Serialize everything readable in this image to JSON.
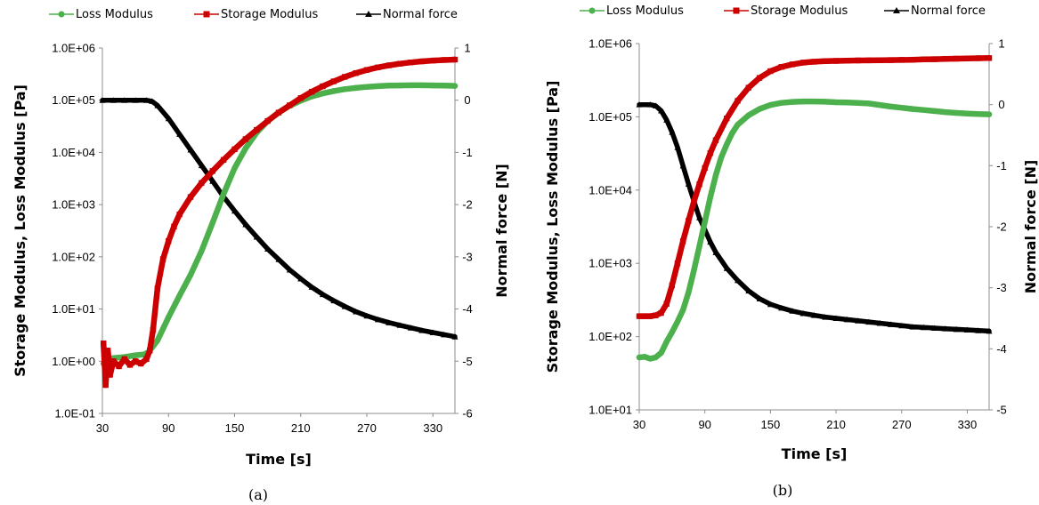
{
  "chart_data": [
    {
      "type": "line",
      "panel_label": "(a)",
      "xlabel": "Time [s]",
      "ylabel": "Storage Modulus, Loss Modulus [Pa]",
      "y2label": "Normal force [N]",
      "xlim": [
        30,
        350
      ],
      "x_ticks": [
        "30",
        "90",
        "150",
        "210",
        "270",
        "330"
      ],
      "x_tick_values": [
        30,
        90,
        150,
        210,
        270,
        330
      ],
      "ylim": [
        0.1,
        1000000
      ],
      "y_scale": "log",
      "y_ticks": [
        "1.0E-01",
        "1.0E+00",
        "1.0E+01",
        "1.0E+02",
        "1.0E+03",
        "1.0E+04",
        "1.0E+05",
        "1.0E+06"
      ],
      "y2lim": [
        -6,
        1
      ],
      "y2_ticks": [
        "-6",
        "-5",
        "-4",
        "-3",
        "-2",
        "-1",
        "0",
        "1"
      ],
      "legend_position": "top",
      "series": [
        {
          "name": "Loss Modulus",
          "color": "#4cb04c",
          "marker": "circle",
          "axis": "left",
          "x": [
            31,
            35,
            40,
            50,
            60,
            68,
            72,
            80,
            90,
            100,
            110,
            120,
            130,
            140,
            150,
            160,
            170,
            180,
            190,
            200,
            210,
            220,
            230,
            240,
            250,
            260,
            270,
            280,
            290,
            300,
            310,
            320,
            330,
            340,
            350
          ],
          "y": [
            0.9,
            1.05,
            1.15,
            1.2,
            1.3,
            1.35,
            1.5,
            2.5,
            7,
            18,
            45,
            130,
            450,
            1600,
            5000,
            12000,
            24000,
            40000,
            58000,
            78000,
            98000,
            118000,
            135000,
            150000,
            163000,
            172000,
            180000,
            186000,
            190000,
            192000,
            193000,
            193000,
            192000,
            190000,
            188000
          ]
        },
        {
          "name": "Storage Modulus",
          "color": "#cc0000",
          "marker": "square",
          "axis": "left",
          "x": [
            31,
            33,
            35,
            37,
            40,
            45,
            50,
            55,
            60,
            65,
            70,
            73,
            76,
            80,
            85,
            90,
            95,
            100,
            110,
            120,
            130,
            140,
            150,
            160,
            170,
            180,
            190,
            200,
            210,
            220,
            230,
            240,
            250,
            260,
            270,
            280,
            290,
            300,
            310,
            320,
            330,
            340,
            350
          ],
          "y": [
            2.2,
            0.35,
            1.6,
            0.55,
            1.0,
            0.8,
            1.1,
            0.85,
            1.0,
            0.9,
            1.1,
            1.6,
            4,
            25,
            90,
            200,
            380,
            650,
            1400,
            2600,
            4400,
            7200,
            11500,
            18000,
            27000,
            40000,
            58000,
            80000,
            110000,
            145000,
            185000,
            230000,
            280000,
            330000,
            380000,
            425000,
            465000,
            500000,
            530000,
            555000,
            575000,
            590000,
            600000
          ]
        },
        {
          "name": "Normal force",
          "color": "#000000",
          "marker": "triangle",
          "axis": "right",
          "x": [
            30,
            40,
            50,
            60,
            70,
            75,
            80,
            90,
            100,
            110,
            120,
            130,
            140,
            150,
            160,
            170,
            180,
            190,
            200,
            210,
            220,
            230,
            240,
            250,
            260,
            270,
            280,
            290,
            300,
            310,
            320,
            330,
            340,
            350
          ],
          "y": [
            0,
            0,
            0,
            0,
            0,
            -0.02,
            -0.1,
            -0.35,
            -0.65,
            -0.95,
            -1.25,
            -1.55,
            -1.85,
            -2.12,
            -2.38,
            -2.62,
            -2.85,
            -3.05,
            -3.25,
            -3.42,
            -3.58,
            -3.72,
            -3.84,
            -3.95,
            -4.05,
            -4.13,
            -4.2,
            -4.26,
            -4.31,
            -4.36,
            -4.41,
            -4.45,
            -4.49,
            -4.53
          ]
        }
      ]
    },
    {
      "type": "line",
      "panel_label": "(b)",
      "xlabel": "Time [s]",
      "ylabel": "Storage Modulus, Loss Modulus [Pa]",
      "y2label": "Normal force [N]",
      "xlim": [
        30,
        350
      ],
      "x_ticks": [
        "30",
        "90",
        "150",
        "210",
        "270",
        "330"
      ],
      "x_tick_values": [
        30,
        90,
        150,
        210,
        270,
        330
      ],
      "ylim": [
        10,
        1000000
      ],
      "y_scale": "log",
      "y_ticks": [
        "1.0E+01",
        "1.0E+02",
        "1.0E+03",
        "1.0E+04",
        "1.0E+05",
        "1.0E+06"
      ],
      "y2lim": [
        -5,
        1
      ],
      "y2_ticks": [
        "-5",
        "-4",
        "-3",
        "-2",
        "-1",
        "0",
        "1"
      ],
      "legend_position": "top",
      "series": [
        {
          "name": "Loss Modulus",
          "color": "#4cb04c",
          "marker": "circle",
          "axis": "left",
          "x": [
            30,
            35,
            40,
            45,
            50,
            55,
            60,
            65,
            70,
            75,
            80,
            85,
            90,
            95,
            100,
            105,
            110,
            115,
            120,
            130,
            140,
            150,
            160,
            170,
            180,
            190,
            200,
            210,
            220,
            230,
            240,
            250,
            260,
            270,
            280,
            290,
            300,
            310,
            320,
            330,
            340,
            350
          ],
          "y": [
            52,
            53,
            50,
            52,
            60,
            85,
            115,
            160,
            230,
            400,
            800,
            1700,
            3700,
            8000,
            16000,
            28000,
            42000,
            60000,
            78000,
            105000,
            128000,
            145000,
            155000,
            160000,
            162000,
            162000,
            161000,
            158000,
            157000,
            155000,
            152000,
            145000,
            138000,
            133000,
            128000,
            124000,
            120000,
            116000,
            113000,
            111000,
            109000,
            108000
          ]
        },
        {
          "name": "Storage Modulus",
          "color": "#cc0000",
          "marker": "square",
          "axis": "left",
          "x": [
            30,
            35,
            40,
            45,
            50,
            55,
            60,
            65,
            70,
            75,
            80,
            85,
            90,
            95,
            100,
            110,
            120,
            130,
            140,
            150,
            160,
            170,
            180,
            190,
            200,
            210,
            220,
            230,
            240,
            250,
            260,
            270,
            280,
            290,
            300,
            310,
            320,
            330,
            340,
            350
          ],
          "y": [
            190,
            190,
            190,
            195,
            210,
            280,
            500,
            1000,
            2000,
            3800,
            7000,
            12000,
            20000,
            32000,
            48000,
            95000,
            165000,
            250000,
            340000,
            420000,
            480000,
            520000,
            550000,
            565000,
            575000,
            580000,
            585000,
            588000,
            590000,
            592000,
            595000,
            598000,
            602000,
            608000,
            612000,
            618000,
            622000,
            627000,
            631000,
            634000
          ]
        },
        {
          "name": "Normal force",
          "color": "#000000",
          "marker": "triangle",
          "axis": "right",
          "x": [
            30,
            40,
            45,
            50,
            55,
            60,
            65,
            70,
            75,
            80,
            85,
            90,
            95,
            100,
            110,
            120,
            130,
            140,
            150,
            160,
            170,
            180,
            190,
            200,
            210,
            220,
            230,
            240,
            250,
            260,
            270,
            280,
            290,
            300,
            310,
            320,
            330,
            340,
            350
          ],
          "y": [
            0,
            0,
            -0.02,
            -0.1,
            -0.25,
            -0.45,
            -0.7,
            -1.0,
            -1.3,
            -1.58,
            -1.85,
            -2.05,
            -2.25,
            -2.42,
            -2.68,
            -2.88,
            -3.05,
            -3.18,
            -3.27,
            -3.33,
            -3.38,
            -3.42,
            -3.45,
            -3.48,
            -3.5,
            -3.52,
            -3.54,
            -3.56,
            -3.58,
            -3.6,
            -3.62,
            -3.64,
            -3.65,
            -3.66,
            -3.67,
            -3.68,
            -3.69,
            -3.7,
            -3.71
          ]
        }
      ]
    }
  ]
}
